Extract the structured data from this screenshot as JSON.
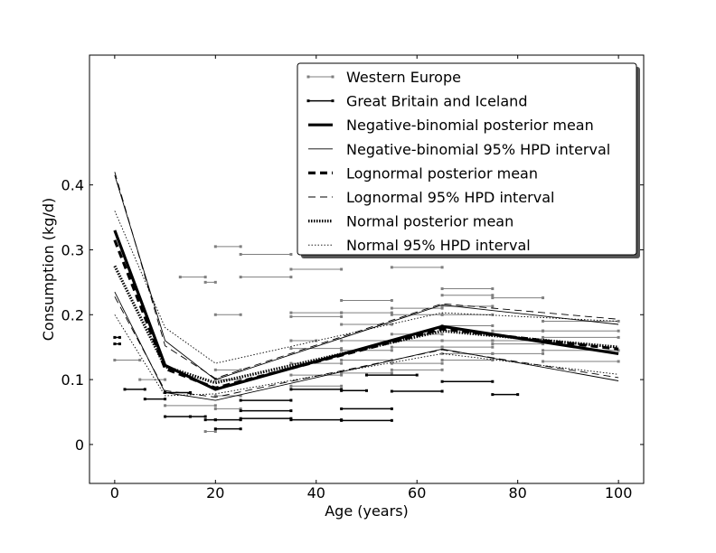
{
  "chart_data": {
    "type": "line",
    "title": "",
    "xlabel": "Age (years)",
    "ylabel": "Consumption (kg/d)",
    "xlim": [
      -5,
      105
    ],
    "ylim": [
      -0.06,
      0.6
    ],
    "xticks": [
      0,
      20,
      40,
      60,
      80,
      100
    ],
    "yticks": [
      0,
      0.1,
      0.2,
      0.3,
      0.4
    ],
    "xtick_labels": [
      "0",
      "20",
      "40",
      "60",
      "80",
      "100"
    ],
    "ytick_labels": [
      "0",
      "0.1",
      "0.2",
      "0.3",
      "0.4"
    ],
    "grid": false,
    "legend_position": "top-right",
    "legend": [
      "Western Europe",
      "Great Britain and Iceland",
      "Negative-binomial posterior mean",
      "Negative-binomial 95% HPD interval",
      "Lognormal posterior mean",
      "Lognormal 95% HPD interval",
      "Normal posterior mean",
      "Normal 95% HPD interval"
    ],
    "western_europe_intervals": [
      [
        0,
        5,
        0.13
      ],
      [
        5,
        10,
        0.1
      ],
      [
        10,
        20,
        0.06
      ],
      [
        13,
        18,
        0.258
      ],
      [
        18,
        20,
        0.25
      ],
      [
        20,
        25,
        0.305
      ],
      [
        25,
        35,
        0.293
      ],
      [
        25,
        35,
        0.258
      ],
      [
        20,
        25,
        0.115
      ],
      [
        20,
        25,
        0.1
      ],
      [
        20,
        25,
        0.075
      ],
      [
        20,
        25,
        0.055
      ],
      [
        35,
        45,
        0.27
      ],
      [
        35,
        45,
        0.203
      ],
      [
        35,
        45,
        0.197
      ],
      [
        35,
        40,
        0.16
      ],
      [
        35,
        45,
        0.148
      ],
      [
        35,
        45,
        0.125
      ],
      [
        35,
        45,
        0.107
      ],
      [
        35,
        45,
        0.09
      ],
      [
        45,
        55,
        0.222
      ],
      [
        45,
        55,
        0.203
      ],
      [
        45,
        55,
        0.185
      ],
      [
        45,
        55,
        0.16
      ],
      [
        45,
        55,
        0.145
      ],
      [
        45,
        55,
        0.13
      ],
      [
        45,
        55,
        0.11
      ],
      [
        55,
        65,
        0.273
      ],
      [
        55,
        65,
        0.21
      ],
      [
        55,
        65,
        0.2
      ],
      [
        55,
        65,
        0.17
      ],
      [
        55,
        65,
        0.16
      ],
      [
        55,
        65,
        0.15
      ],
      [
        55,
        65,
        0.125
      ],
      [
        55,
        65,
        0.115
      ],
      [
        65,
        75,
        0.24
      ],
      [
        65,
        75,
        0.23
      ],
      [
        65,
        75,
        0.213
      ],
      [
        65,
        75,
        0.2
      ],
      [
        65,
        75,
        0.183
      ],
      [
        65,
        75,
        0.16
      ],
      [
        65,
        75,
        0.15
      ],
      [
        65,
        75,
        0.14
      ],
      [
        65,
        75,
        0.13
      ],
      [
        75,
        85,
        0.226
      ],
      [
        75,
        85,
        0.175
      ],
      [
        75,
        85,
        0.16
      ],
      [
        75,
        85,
        0.155
      ],
      [
        75,
        85,
        0.14
      ],
      [
        85,
        100,
        0.19
      ],
      [
        85,
        100,
        0.175
      ],
      [
        85,
        100,
        0.165
      ],
      [
        85,
        100,
        0.145
      ],
      [
        85,
        100,
        0.128
      ],
      [
        18,
        20,
        0.02
      ],
      [
        20,
        25,
        0.2
      ]
    ],
    "great_britain_iceland_intervals": [
      [
        0,
        1,
        0.165
      ],
      [
        0,
        1,
        0.155
      ],
      [
        2,
        6,
        0.085
      ],
      [
        6,
        10,
        0.07
      ],
      [
        10,
        15,
        0.08
      ],
      [
        10,
        15,
        0.043
      ],
      [
        15,
        18,
        0.043
      ],
      [
        18,
        20,
        0.038
      ],
      [
        20,
        25,
        0.038
      ],
      [
        20,
        25,
        0.024
      ],
      [
        25,
        35,
        0.068
      ],
      [
        25,
        35,
        0.052
      ],
      [
        25,
        35,
        0.04
      ],
      [
        35,
        45,
        0.085
      ],
      [
        35,
        45,
        0.038
      ],
      [
        45,
        50,
        0.083
      ],
      [
        45,
        55,
        0.055
      ],
      [
        45,
        55,
        0.037
      ],
      [
        55,
        65,
        0.082
      ],
      [
        50,
        60,
        0.107
      ],
      [
        65,
        75,
        0.097
      ],
      [
        75,
        80,
        0.077
      ]
    ],
    "series": [
      {
        "name": "Negative-binomial posterior mean",
        "x": [
          0,
          10,
          20,
          65,
          100
        ],
        "y": [
          0.33,
          0.122,
          0.085,
          0.182,
          0.14
        ]
      },
      {
        "name": "Negative-binomial 95% HPD interval",
        "upper": {
          "x": [
            0,
            10,
            20,
            65,
            100
          ],
          "y": [
            0.415,
            0.16,
            0.1,
            0.215,
            0.185
          ]
        },
        "lower": {
          "x": [
            0,
            10,
            20,
            65,
            100
          ],
          "y": [
            0.235,
            0.08,
            0.068,
            0.147,
            0.098
          ]
        }
      },
      {
        "name": "Lognormal posterior mean",
        "x": [
          0,
          10,
          20,
          65,
          100
        ],
        "y": [
          0.315,
          0.117,
          0.087,
          0.178,
          0.147
        ]
      },
      {
        "name": "Lognormal 95% HPD interval",
        "upper": {
          "x": [
            0,
            10,
            20,
            65,
            100
          ],
          "y": [
            0.42,
            0.152,
            0.102,
            0.217,
            0.193
          ]
        },
        "lower": {
          "x": [
            0,
            10,
            20,
            65,
            100
          ],
          "y": [
            0.228,
            0.083,
            0.073,
            0.146,
            0.103
          ]
        }
      },
      {
        "name": "Normal posterior mean",
        "x": [
          0,
          10,
          20,
          65,
          100
        ],
        "y": [
          0.275,
          0.12,
          0.095,
          0.175,
          0.15
        ]
      },
      {
        "name": "Normal 95% HPD interval",
        "upper": {
          "x": [
            0,
            10,
            20,
            65,
            100
          ],
          "y": [
            0.36,
            0.18,
            0.125,
            0.203,
            0.19
          ]
        },
        "lower": {
          "x": [
            0,
            10,
            20,
            65,
            100
          ],
          "y": [
            0.2,
            0.075,
            0.078,
            0.14,
            0.108
          ]
        }
      }
    ]
  }
}
